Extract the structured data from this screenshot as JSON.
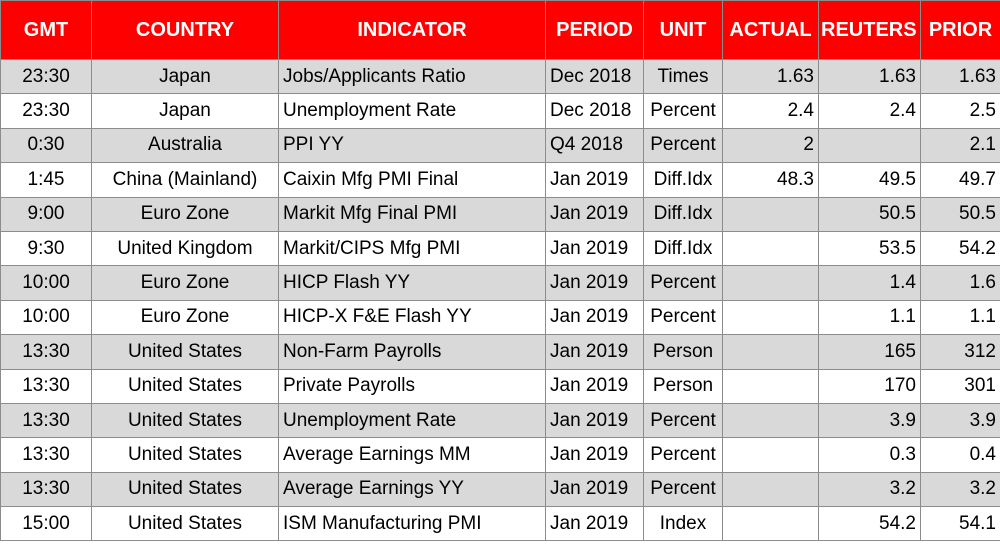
{
  "table": {
    "headers": [
      "GMT",
      "COUNTRY",
      "INDICATOR",
      "PERIOD",
      "UNIT",
      "ACTUAL",
      "REUTERS POLL",
      "PRIOR"
    ],
    "rows": [
      [
        "23:30",
        "Japan",
        "Jobs/Applicants Ratio",
        "Dec 2018",
        "Times",
        "1.63",
        "1.63",
        "1.63"
      ],
      [
        "23:30",
        "Japan",
        "Unemployment Rate",
        "Dec 2018",
        "Percent",
        "2.4",
        "2.4",
        "2.5"
      ],
      [
        "0:30",
        "Australia",
        "PPI YY",
        "Q4 2018",
        "Percent",
        "2",
        "",
        "2.1"
      ],
      [
        "1:45",
        "China (Mainland)",
        "Caixin Mfg PMI Final",
        "Jan 2019",
        "Diff.Idx",
        "48.3",
        "49.5",
        "49.7"
      ],
      [
        "9:00",
        "Euro Zone",
        "Markit Mfg Final PMI",
        "Jan 2019",
        "Diff.Idx",
        "",
        "50.5",
        "50.5"
      ],
      [
        "9:30",
        "United Kingdom",
        "Markit/CIPS Mfg PMI",
        "Jan 2019",
        "Diff.Idx",
        "",
        "53.5",
        "54.2"
      ],
      [
        "10:00",
        "Euro Zone",
        "HICP Flash YY",
        "Jan 2019",
        "Percent",
        "",
        "1.4",
        "1.6"
      ],
      [
        "10:00",
        "Euro Zone",
        "HICP-X F&E Flash YY",
        "Jan 2019",
        "Percent",
        "",
        "1.1",
        "1.1"
      ],
      [
        "13:30",
        "United States",
        "Non-Farm Payrolls",
        "Jan 2019",
        "Person",
        "",
        "165",
        "312"
      ],
      [
        "13:30",
        "United States",
        "Private Payrolls",
        "Jan 2019",
        "Person",
        "",
        "170",
        "301"
      ],
      [
        "13:30",
        "United States",
        "Unemployment Rate",
        "Jan 2019",
        "Percent",
        "",
        "3.9",
        "3.9"
      ],
      [
        "13:30",
        "United States",
        "Average Earnings MM",
        "Jan 2019",
        "Percent",
        "",
        "0.3",
        "0.4"
      ],
      [
        "13:30",
        "United States",
        "Average Earnings YY",
        "Jan 2019",
        "Percent",
        "",
        "3.2",
        "3.2"
      ],
      [
        "15:00",
        "United States",
        "ISM Manufacturing PMI",
        "Jan 2019",
        "Index",
        "",
        "54.2",
        "54.1"
      ]
    ]
  },
  "colors": {
    "header_bg": "#ff0000",
    "header_text": "#ffffff",
    "shaded_row_bg": "#d9d9d9",
    "row_bg": "#ffffff",
    "grid": "#8c8c8c"
  }
}
